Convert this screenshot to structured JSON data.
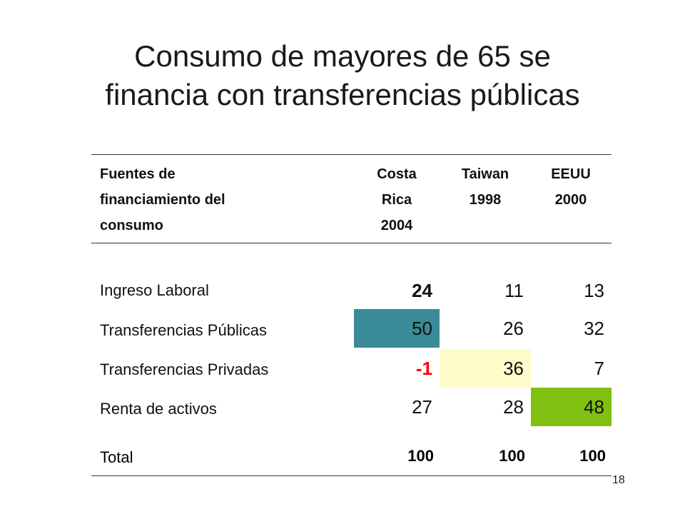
{
  "title": {
    "line1": "Consumo de mayores de 65 se",
    "line2": "financia con transferencias públicas"
  },
  "table": {
    "header": {
      "source_lines": [
        "Fuentes de",
        "financiamiento del",
        "consumo"
      ],
      "costa_rica_lines": [
        "Costa",
        "Rica",
        "2004"
      ],
      "taiwan_lines": [
        "Taiwan",
        "1998"
      ],
      "eeuu_lines": [
        "EEUU",
        "2000"
      ]
    },
    "rows": [
      {
        "label": "Ingreso Laboral",
        "costa_rica": "24",
        "taiwan": "11",
        "eeuu": "13"
      },
      {
        "label": "Transferencias Públicas",
        "costa_rica": "50",
        "taiwan": "26",
        "eeuu": "32"
      },
      {
        "label": "Transferencias Privadas",
        "costa_rica": "-1",
        "taiwan": "36",
        "eeuu": "7"
      },
      {
        "label": "Renta de activos",
        "costa_rica": "27",
        "taiwan": "28",
        "eeuu": "48"
      }
    ],
    "total": {
      "label": "Total",
      "costa_rica": "100",
      "taiwan": "100",
      "eeuu": "100"
    }
  },
  "highlights": {
    "teal": "#3a8a99",
    "light_yellow": "#fffccc",
    "green": "#80c010",
    "red_text": "#ff0000"
  },
  "page_number": "18"
}
